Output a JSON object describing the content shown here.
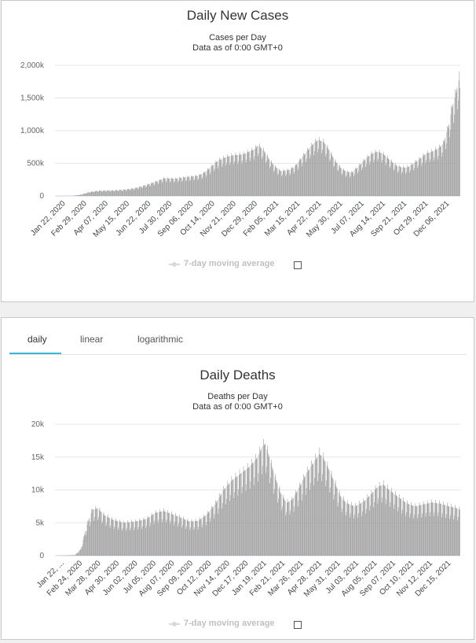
{
  "tabs": {
    "daily": "daily",
    "linear": "linear",
    "logarithmic": "logarithmic"
  },
  "legend_label": "7-day moving average",
  "chart_data": [
    {
      "type": "bar",
      "title": "Daily New Cases",
      "subtitle": "Cases per Day",
      "subtitle2": "Data as of 0:00 GMT+0",
      "ylim": [
        0,
        2000000
      ],
      "y_ticks": [
        "0",
        "500k",
        "1,000k",
        "1,500k",
        "2,000k"
      ],
      "y_tick_values": [
        0,
        500000,
        1000000,
        1500000,
        2000000
      ],
      "x_tick_labels": [
        "Jan 22, 2020",
        "Feb 29, 2020",
        "Apr 07, 2020",
        "May 15, 2020",
        "Jun 22, 2020",
        "Jul 30, 2020",
        "Sep 06, 2020",
        "Oct 14, 2020",
        "Nov 21, 2020",
        "Dec 29, 2020",
        "Feb 05, 2021",
        "Mar 15, 2021",
        "Apr 22, 2021",
        "May 30, 2021",
        "Jul 07, 2021",
        "Aug 14, 2021",
        "Sep 21, 2021",
        "Oct 29, 2021",
        "Dec 06, 2021"
      ],
      "x_start": "Jan 22, 2020",
      "days": 710,
      "series_color": "#9a9a9a",
      "anchors": [
        [
          0,
          500
        ],
        [
          30,
          2500
        ],
        [
          45,
          20000
        ],
        [
          60,
          60000
        ],
        [
          75,
          80000
        ],
        [
          100,
          85000
        ],
        [
          120,
          95000
        ],
        [
          140,
          120000
        ],
        [
          160,
          170000
        ],
        [
          180,
          230000
        ],
        [
          190,
          270000
        ],
        [
          210,
          265000
        ],
        [
          230,
          290000
        ],
        [
          250,
          310000
        ],
        [
          260,
          350000
        ],
        [
          270,
          420000
        ],
        [
          285,
          540000
        ],
        [
          300,
          600000
        ],
        [
          310,
          620000
        ],
        [
          330,
          640000
        ],
        [
          350,
          720000
        ],
        [
          355,
          780000
        ],
        [
          365,
          700000
        ],
        [
          375,
          560000
        ],
        [
          385,
          450000
        ],
        [
          395,
          380000
        ],
        [
          410,
          400000
        ],
        [
          420,
          450000
        ],
        [
          435,
          620000
        ],
        [
          450,
          780000
        ],
        [
          460,
          860000
        ],
        [
          470,
          830000
        ],
        [
          480,
          700000
        ],
        [
          490,
          540000
        ],
        [
          500,
          430000
        ],
        [
          510,
          370000
        ],
        [
          520,
          360000
        ],
        [
          530,
          440000
        ],
        [
          545,
          580000
        ],
        [
          555,
          650000
        ],
        [
          565,
          680000
        ],
        [
          575,
          640000
        ],
        [
          590,
          520000
        ],
        [
          600,
          450000
        ],
        [
          615,
          430000
        ],
        [
          625,
          480000
        ],
        [
          640,
          580000
        ],
        [
          650,
          650000
        ],
        [
          660,
          680000
        ],
        [
          670,
          720000
        ],
        [
          680,
          800000
        ],
        [
          690,
          1100000
        ],
        [
          695,
          1350000
        ],
        [
          700,
          1500000
        ],
        [
          705,
          1700000
        ],
        [
          708,
          1800000
        ],
        [
          709,
          1650000
        ]
      ],
      "weekly_dip": 0.22
    },
    {
      "type": "bar",
      "title": "Daily Deaths",
      "subtitle": "Deaths per Day",
      "subtitle2": "Data as of 0:00 GMT+0",
      "ylim": [
        0,
        20000
      ],
      "y_ticks": [
        "0",
        "5k",
        "10k",
        "15k",
        "20k"
      ],
      "y_tick_values": [
        0,
        5000,
        10000,
        15000,
        20000
      ],
      "x_tick_labels": [
        "Jan 22, ...",
        "Feb 24, 2020",
        "Mar 28, 2020",
        "Apr 30, 2020",
        "Jun 02, 2020",
        "Jul 05, 2020",
        "Aug 07, 2020",
        "Sep 09, 2020",
        "Oct 12, 2020",
        "Nov 14, 2020",
        "Dec 17, 2020",
        "Jan 19, 2021",
        "Feb 21, 2021",
        "Mar 26, 2021",
        "Apr 28, 2021",
        "May 31, 2021",
        "Jul 03, 2021",
        "Aug 05, 2021",
        "Sep 07, 2021",
        "Oct 10, 2021",
        "Nov 12, 2021",
        "Dec 15, 2021"
      ],
      "x_start": "Jan 22, 2020",
      "days": 710,
      "series_color": "#9a9a9a",
      "anchors": [
        [
          0,
          5
        ],
        [
          35,
          100
        ],
        [
          45,
          1000
        ],
        [
          55,
          4500
        ],
        [
          65,
          7000
        ],
        [
          75,
          7200
        ],
        [
          85,
          6200
        ],
        [
          100,
          5500
        ],
        [
          120,
          5000
        ],
        [
          140,
          5200
        ],
        [
          160,
          5600
        ],
        [
          175,
          6500
        ],
        [
          190,
          6800
        ],
        [
          205,
          6300
        ],
        [
          220,
          5800
        ],
        [
          235,
          5200
        ],
        [
          250,
          5300
        ],
        [
          265,
          6200
        ],
        [
          280,
          7800
        ],
        [
          295,
          10000
        ],
        [
          310,
          11500
        ],
        [
          325,
          12500
        ],
        [
          340,
          13500
        ],
        [
          355,
          15000
        ],
        [
          362,
          16500
        ],
        [
          368,
          17000
        ],
        [
          375,
          15000
        ],
        [
          385,
          12000
        ],
        [
          395,
          9500
        ],
        [
          405,
          8000
        ],
        [
          415,
          8500
        ],
        [
          425,
          10000
        ],
        [
          440,
          12500
        ],
        [
          455,
          14500
        ],
        [
          463,
          15500
        ],
        [
          470,
          14800
        ],
        [
          480,
          13000
        ],
        [
          490,
          11000
        ],
        [
          500,
          9000
        ],
        [
          510,
          8000
        ],
        [
          525,
          7500
        ],
        [
          540,
          8200
        ],
        [
          555,
          9500
        ],
        [
          565,
          10500
        ],
        [
          575,
          10800
        ],
        [
          585,
          10000
        ],
        [
          600,
          9000
        ],
        [
          615,
          8000
        ],
        [
          630,
          7500
        ],
        [
          645,
          7800
        ],
        [
          660,
          8100
        ],
        [
          675,
          7900
        ],
        [
          690,
          7500
        ],
        [
          700,
          7300
        ],
        [
          709,
          7000
        ]
      ],
      "weekly_dip": 0.25
    }
  ]
}
